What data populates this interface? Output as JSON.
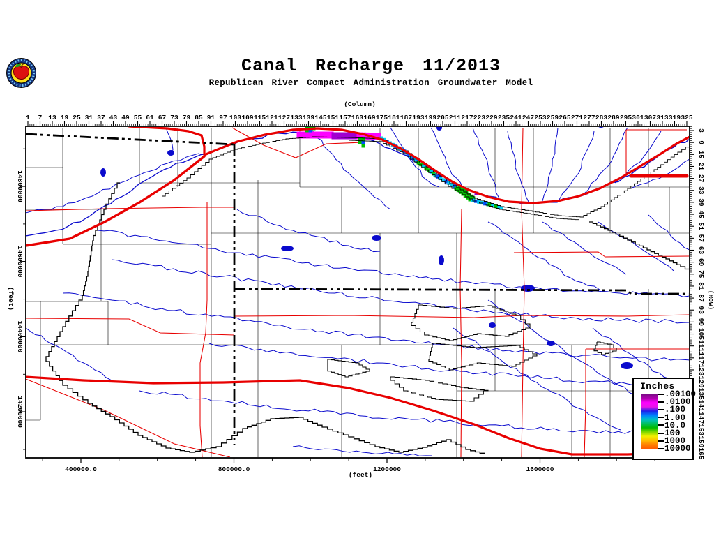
{
  "header": {
    "title": "Canal Recharge 11/2013",
    "subtitle": "Republican River Compact Administration Groundwater Model",
    "logo": "apple-seal-logo"
  },
  "axes": {
    "column": {
      "label": "(Column)",
      "ticks": [
        1,
        7,
        13,
        19,
        25,
        31,
        37,
        43,
        49,
        55,
        61,
        67,
        73,
        79,
        85,
        91,
        97,
        103,
        109,
        115,
        121,
        127,
        133,
        139,
        145,
        151,
        157,
        163,
        169,
        175,
        181,
        187,
        193,
        199,
        205,
        211,
        217,
        223,
        229,
        235,
        241,
        247,
        253,
        259,
        265,
        271,
        277,
        283,
        289,
        295,
        301,
        307,
        313,
        319,
        325
      ]
    },
    "row": {
      "label": "(Row)",
      "ticks": [
        3,
        9,
        15,
        21,
        27,
        33,
        39,
        45,
        51,
        57,
        63,
        69,
        75,
        81,
        87,
        93,
        99,
        105,
        111,
        117,
        123,
        129,
        135,
        141,
        147,
        153,
        159,
        165
      ]
    },
    "x_feet": {
      "label": "(feet)",
      "ticks": [
        "400000.0",
        "800000.0",
        "1200000",
        "1600000"
      ]
    },
    "y_feet": {
      "label": "(feet)",
      "ticks": [
        "14800000",
        "14600000",
        "14400000",
        "14200000"
      ]
    }
  },
  "legend": {
    "title": "Inches",
    "entries": [
      ".00100",
      ".0100",
      ".100",
      "1.00",
      "10.0",
      "100",
      "1000",
      "10000"
    ],
    "gradient": [
      "#7B0B86",
      "#B300B3",
      "#FF00FF",
      "#E815E8",
      "#2020E8",
      "#0080FF",
      "#00C0C8",
      "#00C060",
      "#00BB00",
      "#80D800",
      "#F0F000",
      "#FFC000",
      "#FF8000",
      "#FF5C00"
    ]
  },
  "map_colors": {
    "background": "#FFFFFF",
    "stream": "#0A0ACD",
    "waterbody": "#0A0ACD",
    "road": "#E80000",
    "highway": "#E80000",
    "state_boundary": "#000000",
    "county_boundary": "#000000",
    "model_boundary": "#000000",
    "cell_magenta": "#FF00FF",
    "cell_purple": "#A000D0",
    "cell_blue": "#0050FF",
    "cell_cyan": "#00CCF0",
    "cell_green": "#00C000"
  }
}
